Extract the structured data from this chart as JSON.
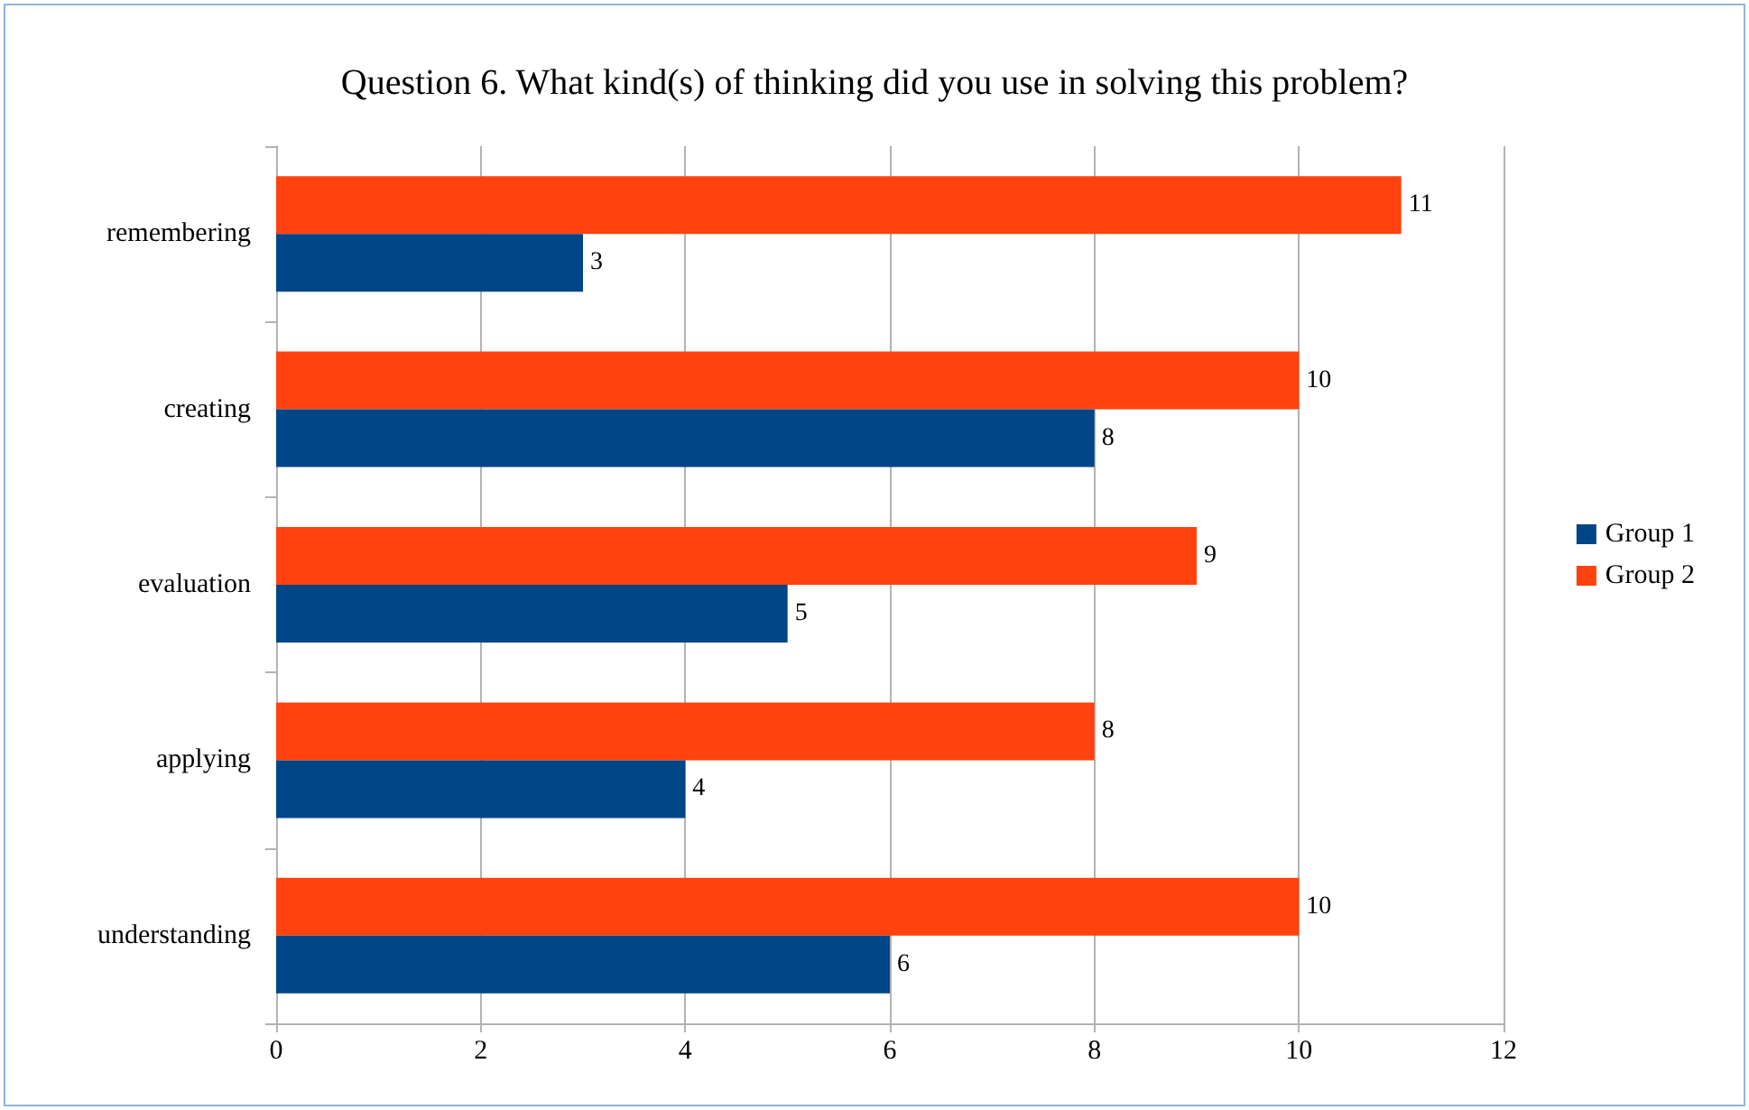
{
  "chart_data": {
    "type": "bar",
    "orientation": "horizontal",
    "title": "Question 6. What kind(s) of thinking did you use in solving this problem?",
    "categories": [
      "remembering",
      "creating",
      "evaluation",
      "applying",
      "understanding"
    ],
    "series": [
      {
        "name": "Group 1",
        "color": "#004586",
        "values": [
          3,
          8,
          5,
          4,
          6
        ]
      },
      {
        "name": "Group 2",
        "color": "#ff420e",
        "values": [
          11,
          10,
          9,
          8,
          10
        ]
      }
    ],
    "xlim": [
      0,
      12
    ],
    "xticks": [
      0,
      2,
      4,
      6,
      8,
      10,
      12
    ],
    "grid": "x",
    "legend": "right",
    "data_labels": true
  }
}
